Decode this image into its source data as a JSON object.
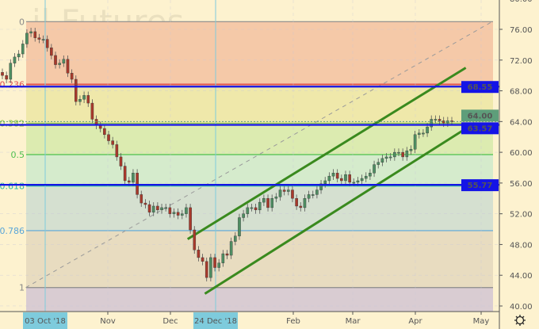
{
  "watermark": "il Futures",
  "chart_data": {
    "type": "candlestick",
    "ylim": [
      40,
      80
    ],
    "y_ticks": [
      "40.00",
      "44.00",
      "48.00",
      "52.00",
      "56.00",
      "60.00",
      "64.00",
      "68.00",
      "72.00",
      "76.00",
      "80.00"
    ],
    "x_ticks": [
      {
        "date": "2018-11-01",
        "label": "Nov"
      },
      {
        "date": "2018-12-03",
        "label": "Dec"
      },
      {
        "date": "2019-02-01",
        "label": "Feb"
      },
      {
        "date": "2019-03-01",
        "label": "Mar"
      },
      {
        "date": "2019-04-01",
        "label": "Apr"
      },
      {
        "date": "2019-05-01",
        "label": "May"
      }
    ],
    "highlighted_dates": [
      {
        "date": "2018-10-03",
        "label": "03 Oct '18"
      },
      {
        "date": "2018-12-24",
        "label": "24 Dec '18"
      }
    ],
    "closes": [
      70.0,
      69.5,
      71.6,
      72.4,
      72.8,
      74.1,
      75.5,
      75.7,
      74.9,
      74.7,
      74.7,
      73.6,
      72.6,
      71.4,
      71.6,
      72.1,
      70.3,
      69.5,
      66.6,
      66.9,
      67.4,
      66.4,
      64.3,
      63.5,
      63.1,
      62.3,
      61.5,
      61.0,
      59.4,
      58.2,
      56.3,
      56.1,
      57.3,
      54.5,
      53.4,
      53.2,
      52.2,
      53.0,
      52.5,
      52.8,
      52.8,
      52.0,
      52.2,
      51.8,
      52.0,
      52.8,
      49.9,
      47.3,
      46.3,
      45.8,
      43.7,
      46.3,
      45.0,
      45.6,
      46.8,
      46.6,
      48.4,
      49.1,
      51.5,
      52.0,
      52.8,
      52.8,
      52.5,
      53.5,
      54.0,
      52.8,
      54.0,
      54.2,
      55.1,
      54.9,
      55.1,
      54.0,
      53.0,
      52.8,
      54.0,
      54.5,
      54.5,
      55.1,
      55.9,
      56.3,
      56.9,
      57.3,
      56.6,
      56.3,
      57.1,
      56.1,
      56.1,
      56.3,
      56.6,
      56.9,
      57.3,
      58.4,
      58.7,
      59.2,
      59.4,
      59.4,
      60.0,
      60.0,
      59.4,
      60.2,
      60.4,
      62.3,
      62.5,
      62.5,
      63.3,
      64.3,
      64.3,
      64.1,
      63.8,
      64.1,
      64.0
    ],
    "fibonacci": {
      "price_0": 77.0,
      "price_1": 42.4,
      "levels": [
        {
          "level": 0,
          "label": "0",
          "color": "#8a8a8a",
          "fill": "#f5c9a8"
        },
        {
          "level": 0.236,
          "label": "0.236",
          "color": "#e05050",
          "fill": "#efe8aa"
        },
        {
          "level": 0.382,
          "label": "0.382",
          "color": "#8cc63f",
          "fill": "#dcebb0"
        },
        {
          "level": 0.5,
          "label": "0.5",
          "color": "#4cc04c",
          "fill": "#d5ebcc"
        },
        {
          "level": 0.618,
          "label": "0.618",
          "color": "#2bb5a0",
          "fill": "#d5e0d0"
        },
        {
          "level": 0.786,
          "label": "0.786",
          "color": "#5aa6d8",
          "fill": "#e8dcc0"
        },
        {
          "level": 1,
          "label": "1",
          "color": "#8a8a8a",
          "fill": "#d9ccd2"
        }
      ]
    },
    "horizontal_levels": [
      {
        "price": 68.55,
        "label": "68.55"
      },
      {
        "price": 63.57,
        "label": "63.57"
      },
      {
        "price": 55.77,
        "label": "55.77"
      }
    ],
    "last_price": {
      "price": 64.0,
      "label": "64.00"
    },
    "trendlines": [
      {
        "name": "channel-upper",
        "start": [
          "2018-12-11",
          48.7
        ],
        "end": [
          "2019-04-24",
          71.0
        ],
        "color": "#3a8a1e"
      },
      {
        "name": "channel-lower",
        "start": [
          "2018-12-19",
          41.6
        ],
        "end": [
          "2019-04-28",
          63.8
        ],
        "color": "#3a8a1e"
      },
      {
        "name": "fib-trend",
        "start": [
          "2018-09-24",
          42.4
        ],
        "end": [
          "2019-05-06",
          77.0
        ],
        "color": "#9a9a9a",
        "dashed": true
      }
    ],
    "colors": {
      "up": "#4e8e62",
      "down": "#a8392b",
      "level_line": "#1414e6",
      "last_price": "#5e9e7a",
      "date_marker": "#7ecbdc"
    }
  },
  "toolbar": {
    "settings_icon": "gear-icon"
  }
}
